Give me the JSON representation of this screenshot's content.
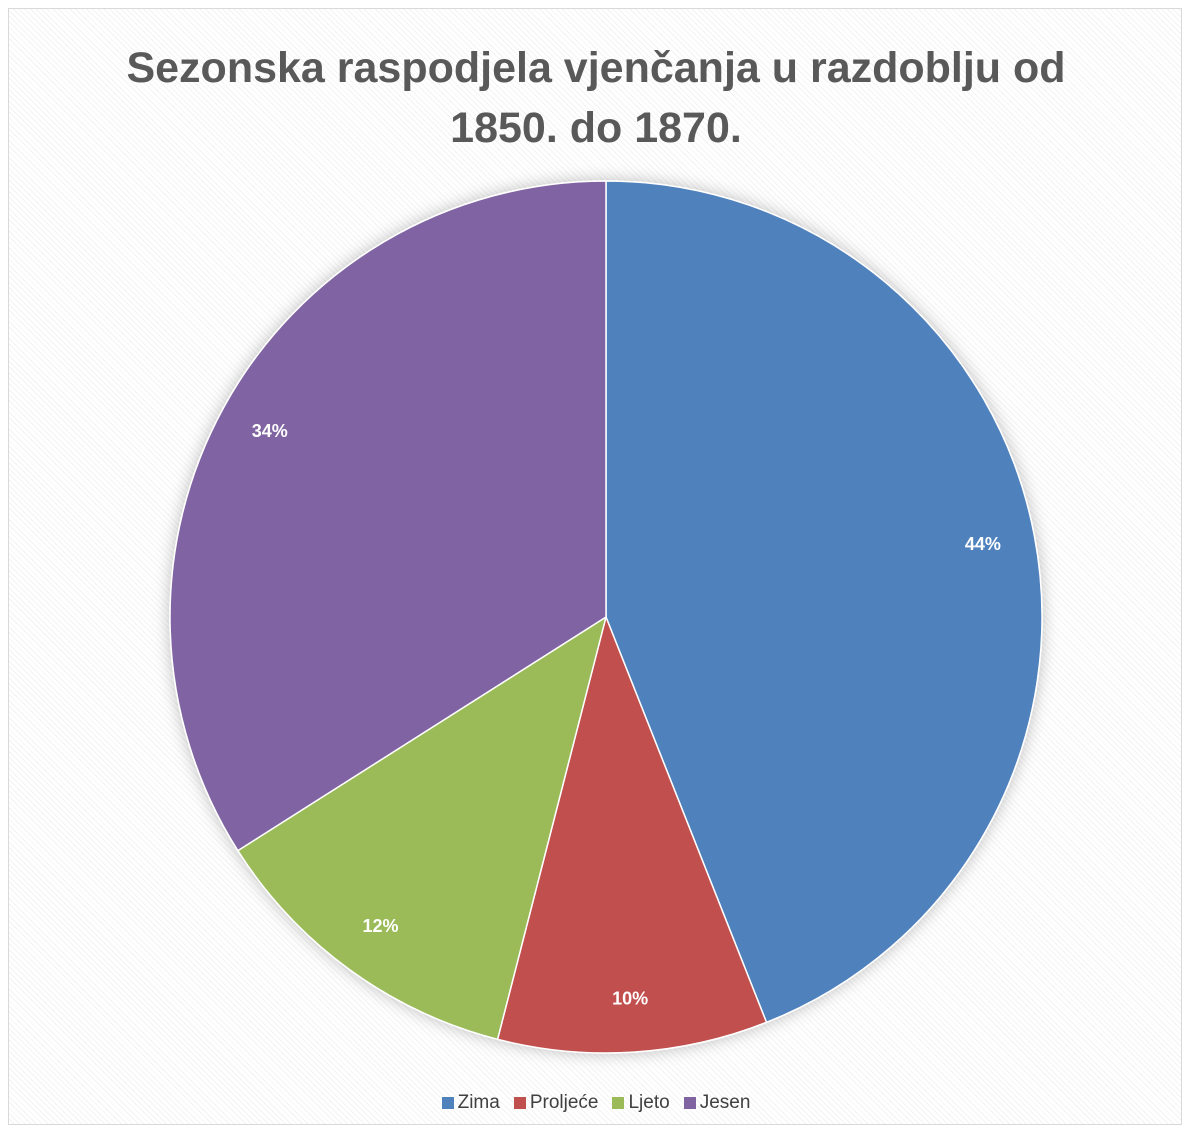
{
  "chart_data": {
    "type": "pie",
    "title": "Sezonska raspodjela vjenčanja u razdoblju od 1850. do 1870.",
    "categories": [
      "Zima",
      "Proljeće",
      "Ljeto",
      "Jesen"
    ],
    "values": [
      44,
      10,
      12,
      34
    ],
    "value_labels": [
      "44%",
      "10%",
      "12%",
      "34%"
    ],
    "colors": [
      "#4f81bd",
      "#c0504d",
      "#9bbb59",
      "#8064a2"
    ],
    "legend": "bottom"
  }
}
